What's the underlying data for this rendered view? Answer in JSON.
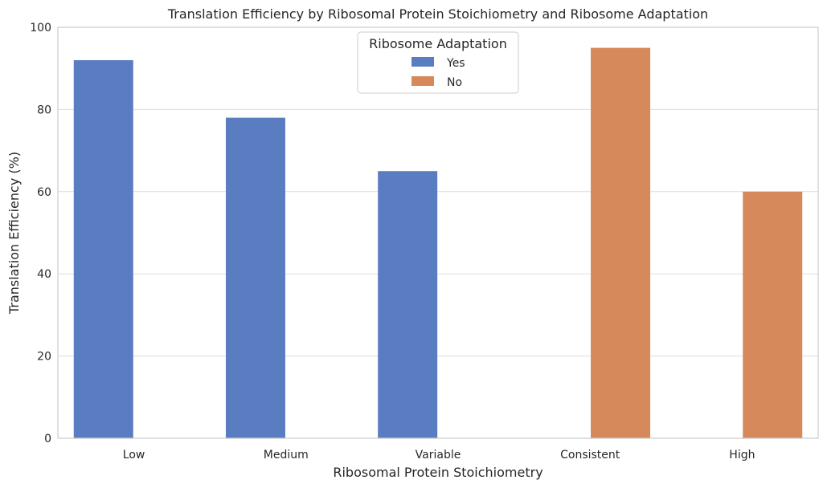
{
  "chart_data": {
    "type": "bar",
    "title": "Translation Efficiency by Ribosomal Protein Stoichiometry and Ribosome Adaptation",
    "xlabel": "Ribosomal Protein Stoichiometry",
    "ylabel": "Translation Efficiency (%)",
    "ylim": [
      0,
      100
    ],
    "yticks": [
      0,
      20,
      40,
      60,
      80,
      100
    ],
    "grid": true,
    "categories": [
      "Low",
      "Medium",
      "Variable",
      "Consistent",
      "High"
    ],
    "legend": {
      "title": "Ribosome Adaptation",
      "placement": "top-center"
    },
    "series": [
      {
        "name": "Yes",
        "color": "#5a7dc2",
        "values": [
          92,
          78,
          65,
          null,
          null
        ]
      },
      {
        "name": "No",
        "color": "#d6895a",
        "values": [
          null,
          null,
          null,
          95,
          60
        ]
      }
    ]
  }
}
